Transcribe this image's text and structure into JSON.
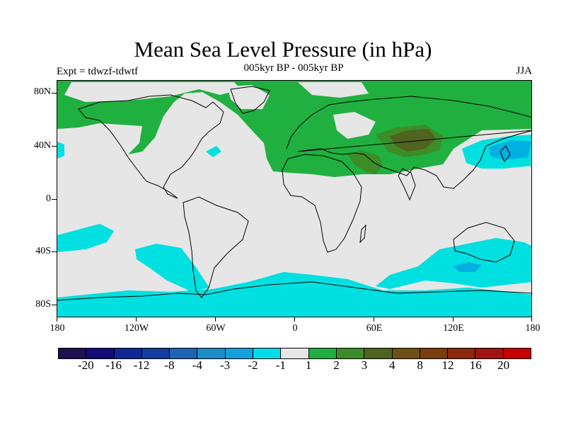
{
  "title": "Mean Sea Level Pressure (in hPa)",
  "subtitle": "005kyr BP - 005kyr BP",
  "experiment": "Expt = tdwzf-tdwtf",
  "season": "JJA",
  "map": {
    "lat_labels": [
      "80N",
      "40N",
      "0",
      "40S",
      "80S"
    ],
    "lon_labels": [
      "180",
      "120W",
      "60W",
      "0",
      "60E",
      "120E",
      "180"
    ],
    "colors": {
      "ocean_neutral": "#e6e6e6",
      "pos_1_2": "#20b040",
      "pos_2_3": "#3c8c28",
      "pos_3_4": "#50641e",
      "neg_m1_m2": "#00e0e0",
      "neg_m2_m3": "#00b0e0",
      "coast": "#000000"
    }
  },
  "colorbar": {
    "colors": [
      "#1e0f50",
      "#140a78",
      "#0f2896",
      "#143ca0",
      "#1e64b4",
      "#1e8cc8",
      "#14a0dc",
      "#00dce8",
      "#e6e6e6",
      "#20b040",
      "#3c8c28",
      "#50641e",
      "#6e5014",
      "#7a3c0a",
      "#8c280a",
      "#a01414",
      "#c80000"
    ],
    "labels": [
      "-20",
      "-16",
      "-12",
      "-8",
      "-4",
      "-3",
      "-2",
      "-1",
      "1",
      "2",
      "3",
      "4",
      "8",
      "12",
      "16",
      "20"
    ]
  }
}
